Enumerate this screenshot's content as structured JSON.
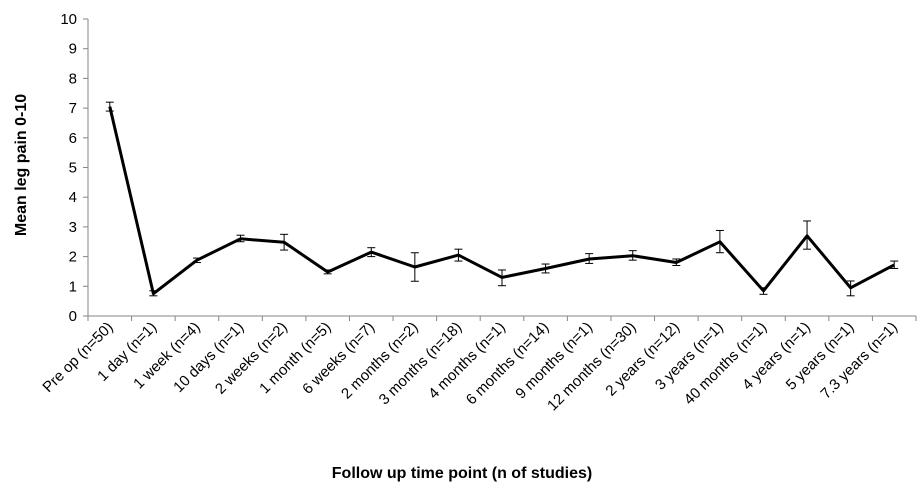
{
  "chart_data": {
    "type": "line",
    "xlabel": "Follow up time point (n of studies)",
    "ylabel": "Mean leg pain 0-10",
    "ylim": [
      0,
      10
    ],
    "yticks": [
      0,
      1,
      2,
      3,
      4,
      5,
      6,
      7,
      8,
      9,
      10
    ],
    "grid": false,
    "legend": "none",
    "line_color": "#000000",
    "categories": [
      "Pre op (n=50)",
      "1 day (n=1)",
      "1 week (n=4)",
      "10 days (n=1)",
      "2 weeks (n=2)",
      "1 month (n=5)",
      "6 weeks (n=7)",
      "2 months (n=2)",
      "3 months (n=18)",
      "4 months (n=1)",
      "6 months (n=14)",
      "9 months (n=1)",
      "12 months (n=30)",
      "2 years (n=12)",
      "3 years (n=1)",
      "40 months (n=1)",
      "4 years (n=1)",
      "5 years (n=1)",
      "7.3 years (n=1)"
    ],
    "series": [
      {
        "values": [
          7.05,
          0.75,
          1.88,
          2.6,
          2.48,
          1.48,
          2.15,
          1.65,
          2.05,
          1.3,
          1.6,
          1.92,
          2.03,
          1.8,
          2.5,
          0.85,
          2.7,
          0.95,
          1.72
        ],
        "error_upper": [
          7.2,
          0.85,
          1.95,
          2.72,
          2.75,
          1.55,
          2.3,
          2.13,
          2.25,
          1.55,
          1.75,
          2.1,
          2.2,
          1.92,
          2.88,
          0.95,
          3.2,
          1.18,
          1.85
        ],
        "error_lower": [
          6.9,
          0.68,
          1.8,
          2.5,
          2.22,
          1.42,
          2.0,
          1.17,
          1.85,
          1.02,
          1.45,
          1.77,
          1.88,
          1.7,
          2.13,
          0.73,
          2.25,
          0.68,
          1.6
        ]
      }
    ]
  }
}
